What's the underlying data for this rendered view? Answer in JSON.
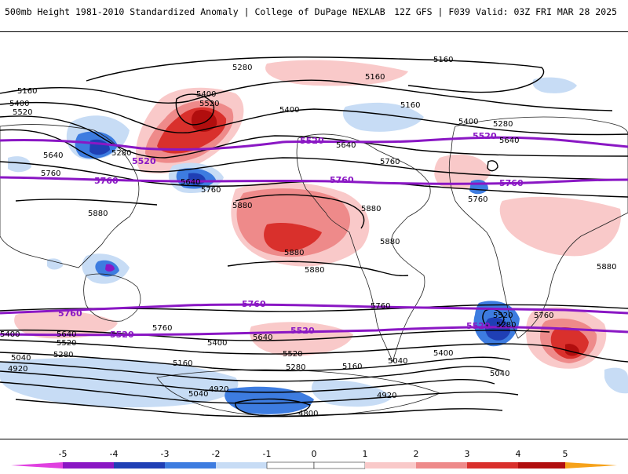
{
  "header": {
    "left_title": "500mb Height 1981-2010 Standardized Anomaly | College of DuPage NEXLAB",
    "right_title": "12Z GFS | F039 Valid: 03Z FRI MAR 28 2025"
  },
  "colors": {
    "anom_neg5": "#e040e0",
    "anom_neg4": "#8a17c4",
    "anom_neg3": "#1f3fb5",
    "anom_neg2": "#3d7ce0",
    "anom_neg1": "#c7dcf5",
    "anom_pos1": "#f9c9c9",
    "anom_pos2": "#ee8a8a",
    "anom_pos3": "#d9302c",
    "anom_pos4": "#b10e0e",
    "anom_pos5": "#f6a21a",
    "contour": "#000000",
    "highlight_contour": "#8a17c4"
  },
  "colorbar": {
    "ticks": [
      "-5",
      "-4",
      "-3",
      "-2",
      "-1",
      "0",
      "1",
      "2",
      "3",
      "4",
      "5"
    ]
  },
  "contour_labels": {
    "c5160_a": "5160",
    "c5160_b": "5160",
    "c5160_c": "5160",
    "c5160_d": "5160",
    "c5160_e": "5160",
    "c5160_f": "5160",
    "c5280_a": "5280",
    "c5280_b": "5280",
    "c5280_c": "5280",
    "c5280_d": "5280",
    "c5280_e": "5280",
    "c5280_f": "5280",
    "c5400_a": "5400",
    "c5400_b": "5400",
    "c5400_c": "5400",
    "c5400_d": "5400",
    "c5400_e": "5400",
    "c5400_f": "5400",
    "c5400_g": "5400",
    "c5520_a": "5520",
    "c5520_b": "5520",
    "c5520_c": "5520",
    "c5520_d": "5520",
    "c5520_e": "5520",
    "c5640_a": "5640",
    "c5640_b": "5640",
    "c5640_c": "5640",
    "c5640_d": "5640",
    "c5640_e": "5640",
    "c5640_f": "5640",
    "c5760_a": "5760",
    "c5760_b": "5760",
    "c5760_c": "5760",
    "c5760_d": "5760",
    "c5760_e": "5760",
    "c5760_f": "5760",
    "c5760_g": "5760",
    "c5880_a": "5880",
    "c5880_b": "5880",
    "c5880_c": "5880",
    "c5880_d": "5880",
    "c5880_e": "5880",
    "c5880_f": "5880",
    "c5880_g": "5880",
    "c5040_a": "5040",
    "c5040_b": "5040",
    "c5040_c": "5040",
    "c5040_d": "5040",
    "c4920_a": "4920",
    "c4920_b": "4920",
    "c4920_c": "4920",
    "c4800_a": "4800"
  },
  "highlight_labels": {
    "n5520_a": "5520",
    "n5520_b": "5520",
    "n5520_c": "5520",
    "n5760_a": "5760",
    "n5760_b": "5760",
    "n5760_c": "5760",
    "s5760_a": "5760",
    "s5760_b": "5760",
    "s5520_a": "5520",
    "s5520_b": "5520",
    "s5520_c": "5520"
  }
}
